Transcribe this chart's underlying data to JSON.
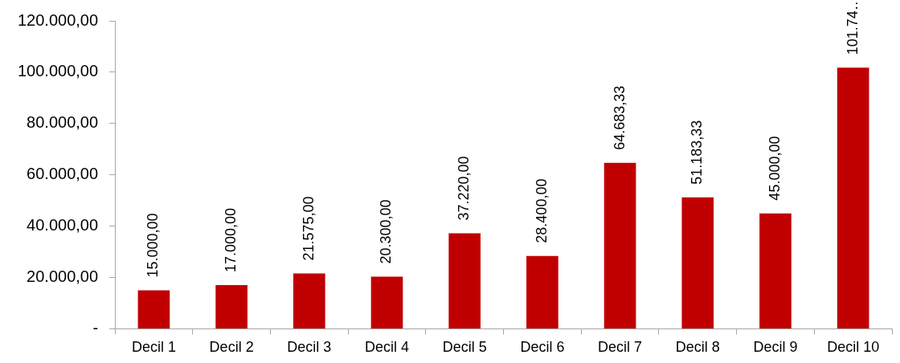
{
  "chart_data": {
    "type": "bar",
    "categories": [
      "Decil 1",
      "Decil 2",
      "Decil 3",
      "Decil 4",
      "Decil 5",
      "Decil 6",
      "Decil 7",
      "Decil 8",
      "Decil 9",
      "Decil 10"
    ],
    "values": [
      15000,
      17000,
      21575,
      20300,
      37220,
      28400,
      64683.33,
      51183.33,
      45000,
      101740
    ],
    "value_labels": [
      "15.000,00",
      "17.000,00",
      "21.575,00",
      "20.300,00",
      "37.220,00",
      "28.400,00",
      "64.683,33",
      "51.183,33",
      "45.000,00",
      "101.74…"
    ],
    "color": "#c00000",
    "ylim": [
      0,
      120000
    ],
    "yticks": [
      {
        "value": 0,
        "label": "-"
      },
      {
        "value": 20000,
        "label": "20.000,00"
      },
      {
        "value": 40000,
        "label": "40.000,00"
      },
      {
        "value": 60000,
        "label": "60.000,00"
      },
      {
        "value": 80000,
        "label": "80.000,00"
      },
      {
        "value": 100000,
        "label": "100.000,00"
      },
      {
        "value": 120000,
        "label": "120.000,00"
      }
    ]
  }
}
